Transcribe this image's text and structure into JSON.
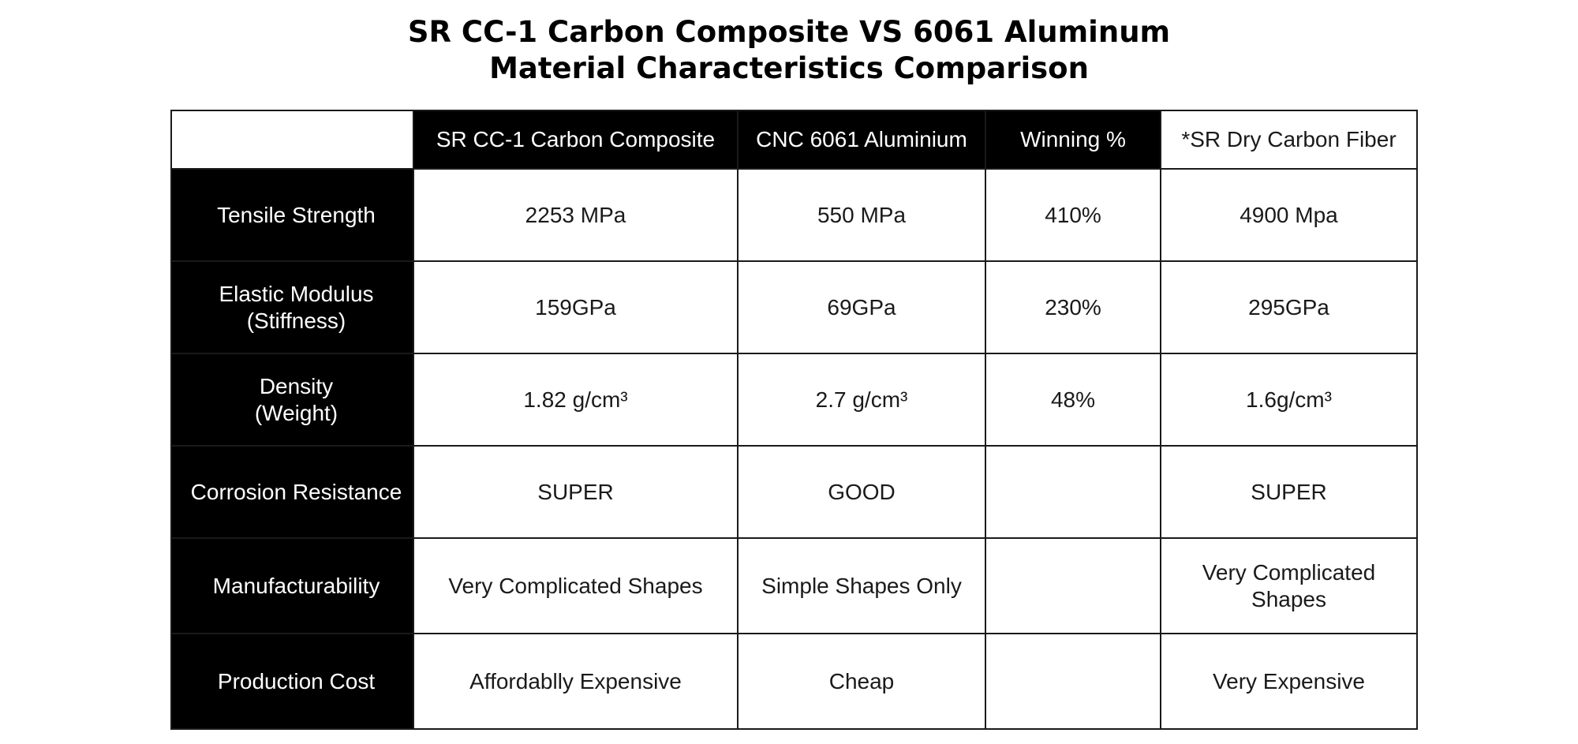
{
  "title": {
    "line1": "SR CC-1 Carbon Composite VS 6061 Aluminum",
    "line2": "Material Characteristics Comparison"
  },
  "table": {
    "headers": [
      "",
      "SR CC-1 Carbon Composite",
      "CNC 6061 Aluminium",
      "Winning %",
      "*SR Dry Carbon Fiber"
    ],
    "rows": [
      {
        "label_lines": [
          "Tensile Strength"
        ],
        "cc1": "2253 MPa",
        "al": "550 MPa",
        "win": "410%",
        "dry_lines": [
          "4900 Mpa"
        ]
      },
      {
        "label_lines": [
          "Elastic Modulus",
          "(Stiffness)"
        ],
        "cc1": "159GPa",
        "al": "69GPa",
        "win": "230%",
        "dry_lines": [
          "295GPa"
        ]
      },
      {
        "label_lines": [
          "Density",
          "(Weight)"
        ],
        "cc1": "1.82 g/cm³",
        "al": "2.7 g/cm³",
        "win": "48%",
        "dry_lines": [
          "1.6g/cm³"
        ]
      },
      {
        "label_lines": [
          "Corrosion Resistance"
        ],
        "cc1": "SUPER",
        "al": "GOOD",
        "win": "",
        "dry_lines": [
          "SUPER"
        ]
      },
      {
        "label_lines": [
          "Manufacturability"
        ],
        "cc1": "Very Complicated Shapes",
        "al": "Simple Shapes Only",
        "win": "",
        "dry_lines": [
          "Very Complicated",
          "Shapes"
        ]
      },
      {
        "label_lines": [
          "Production Cost"
        ],
        "cc1": "Affordablly Expensive",
        "al": "Cheap",
        "win": "",
        "dry_lines": [
          "Very Expensive"
        ]
      }
    ]
  }
}
